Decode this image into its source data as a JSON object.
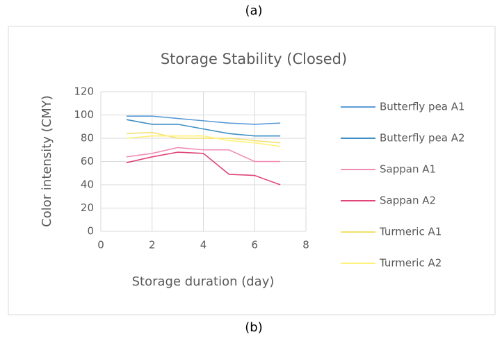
{
  "caption_top": "(a)",
  "caption_bottom": "(b)",
  "chart_data": {
    "type": "line",
    "title": "Storage Stability (Closed)",
    "x_label": "Storage duration (day)",
    "y_label": "Color intensity (CMY)",
    "x": [
      1,
      2,
      3,
      4,
      5,
      6,
      7
    ],
    "series": [
      {
        "name": "Butterfly pea A1",
        "color": "#5b9bd5",
        "values": [
          99,
          99,
          97,
          95,
          93,
          92,
          93
        ]
      },
      {
        "name": "Butterfly pea A2",
        "color": "#3f8fc4",
        "values": [
          96,
          92,
          92,
          88,
          84,
          82,
          82
        ]
      },
      {
        "name": "Sappan A1",
        "color": "#f08cb4",
        "values": [
          64,
          67,
          72,
          70,
          70,
          60,
          60
        ]
      },
      {
        "name": "Sappan A2",
        "color": "#e0457b",
        "values": [
          59,
          64,
          68,
          67,
          49,
          48,
          40
        ]
      },
      {
        "name": "Turmeric A1",
        "color": "#f3e06a",
        "values": [
          84,
          85,
          80,
          80,
          80,
          78,
          76
        ]
      },
      {
        "name": "Turmeric A2",
        "color": "#fff27a",
        "values": [
          80,
          82,
          82,
          82,
          78,
          76,
          73
        ]
      }
    ],
    "xlim": [
      0,
      8
    ],
    "xticks": [
      0,
      2,
      4,
      6,
      8
    ],
    "ylim": [
      0,
      120
    ],
    "yticks": [
      0,
      20,
      40,
      60,
      80,
      100,
      120
    ],
    "grid": true,
    "legend": "right"
  }
}
